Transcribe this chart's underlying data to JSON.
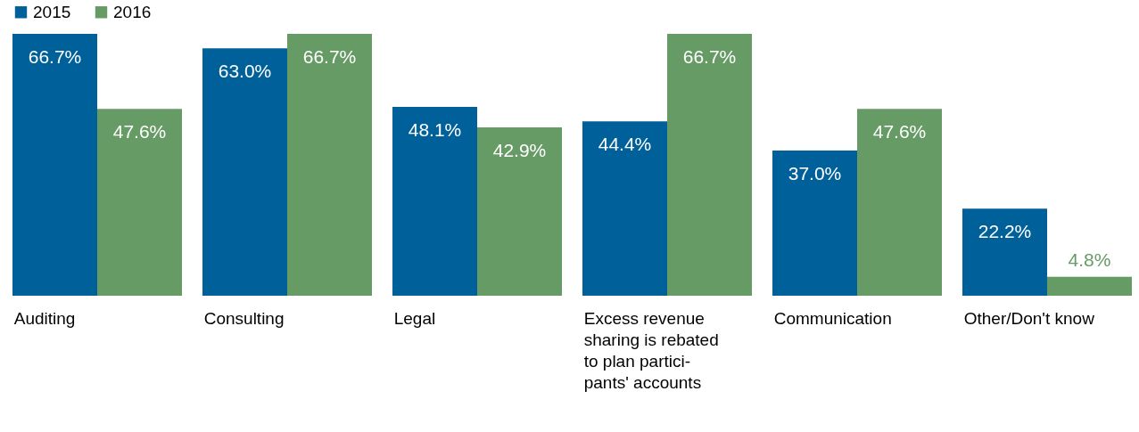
{
  "chart_data": {
    "type": "bar",
    "categories": [
      "Auditing",
      "Consulting",
      "Legal",
      "Excess revenue\nsharing is rebated\nto plan partici-\npants' accounts",
      "Communication",
      "Other/Don't know"
    ],
    "series": [
      {
        "name": "2015",
        "color": "#00609a",
        "values": [
          66.7,
          63.0,
          48.1,
          44.4,
          37.0,
          22.2
        ],
        "value_labels": [
          "66.7%",
          "63.0%",
          "48.1%",
          "44.4%",
          "37.0%",
          "22.2%"
        ]
      },
      {
        "name": "2016",
        "color": "#679b65",
        "values": [
          47.6,
          66.7,
          42.9,
          66.7,
          47.6,
          4.8
        ],
        "value_labels": [
          "47.6%",
          "66.7%",
          "42.9%",
          "66.7%",
          "47.6%",
          "4.8%"
        ]
      }
    ],
    "legend": "top left",
    "grid": false
  }
}
